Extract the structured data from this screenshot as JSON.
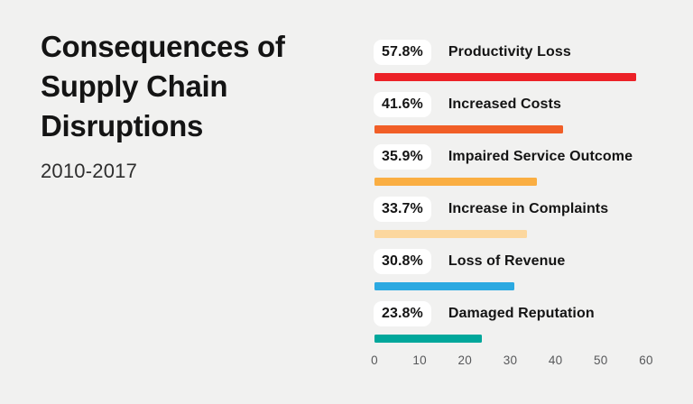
{
  "background": "#f1f1f0",
  "header": {
    "title_lines": [
      "Consequences of",
      "Supply Chain",
      "Disruptions"
    ],
    "subtitle": "2010-2017"
  },
  "chart_data": {
    "type": "bar",
    "orientation": "horizontal",
    "title": "Consequences of Supply Chain Disruptions",
    "subtitle": "2010-2017",
    "categories": [
      "Productivity Loss",
      "Increased Costs",
      "Impaired Service Outcome",
      "Increase in Complaints",
      "Loss of Revenue",
      "Damaged Reputation"
    ],
    "values": [
      57.8,
      41.6,
      35.9,
      33.7,
      30.8,
      23.8
    ],
    "value_labels": [
      "57.8%",
      "41.6%",
      "35.9%",
      "33.7%",
      "30.8%",
      "23.8%"
    ],
    "bar_colors": [
      "#ec2127",
      "#f15e27",
      "#faae42",
      "#fcd79e",
      "#2ca9e1",
      "#00a79b"
    ],
    "badge_background": "#ffffff",
    "text_color": "#141414",
    "axis_text_color": "#57585a",
    "xlabel": "",
    "ylabel": "",
    "xlim": [
      0,
      60
    ],
    "x_ticks": [
      0,
      10,
      20,
      30,
      40,
      50,
      60
    ],
    "grid": false,
    "legend": false
  }
}
